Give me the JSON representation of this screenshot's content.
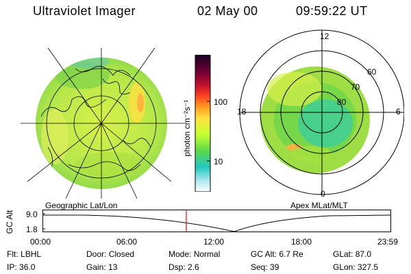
{
  "header": {
    "title": "Ultraviolet Imager",
    "date": "02 May 00",
    "time": "09:59:22 UT"
  },
  "colorbar": {
    "unit_label": "photon cm⁻²s⁻¹",
    "ticks": [
      "100",
      "10"
    ],
    "colors": [
      "#1a0026",
      "#6a0032",
      "#c01030",
      "#ff4020",
      "#ff9a20",
      "#ffe040",
      "#c8ff30",
      "#5cd84a",
      "#22c8c0",
      "#aee8f0",
      "#ffffff"
    ]
  },
  "left_panel": {
    "caption": "Geographic Lat/Lon"
  },
  "right_panel": {
    "caption": "Apex MLat/MLT",
    "lat_labels": [
      "60",
      "70",
      "80"
    ],
    "mlt_labels": {
      "top": "12",
      "left": "18",
      "right": "6",
      "bottom": "0"
    }
  },
  "timeline": {
    "ylabel": "GC Alt",
    "yticks": [
      "9.0",
      "1.8"
    ],
    "xticks": [
      "00:00",
      "06:00",
      "12:00",
      "18:00",
      "23:59"
    ],
    "current_marker_color": "#ff0000"
  },
  "status": {
    "row1": [
      {
        "label": "Flt:",
        "value": "LBHL"
      },
      {
        "label": "Door:",
        "value": "Closed"
      },
      {
        "label": "Mode:",
        "value": "Normal"
      },
      {
        "label": "GC Alt:",
        "value": "6.7 Re"
      },
      {
        "label": "GLat:",
        "value": "87.0"
      }
    ],
    "row2": [
      {
        "label": "IP:",
        "value": "36.0"
      },
      {
        "label": "Gain:",
        "value": "13"
      },
      {
        "label": "Dsp:",
        "value": "2.6"
      },
      {
        "label": "Seq:",
        "value": "39"
      },
      {
        "label": "GLon:",
        "value": "327.5"
      }
    ]
  }
}
